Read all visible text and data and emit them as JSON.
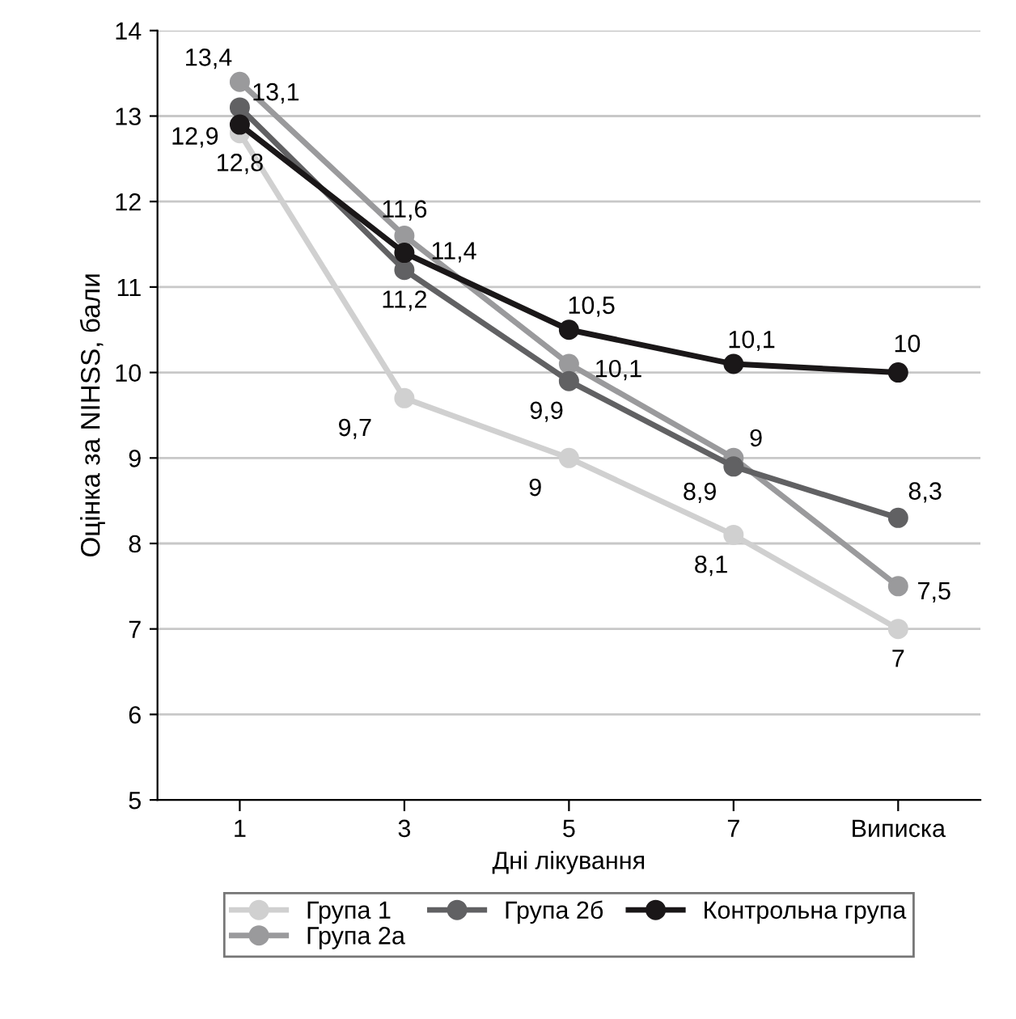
{
  "chart_data": {
    "type": "line",
    "ylabel": "Оцінка за NIHSS, бали",
    "xlabel": "Дні лікування",
    "categories": [
      "1",
      "3",
      "5",
      "7",
      "Виписка"
    ],
    "series": [
      {
        "name": "Група 1",
        "color": "#d0d0d0",
        "values": [
          12.8,
          9.7,
          9,
          8.1,
          7
        ],
        "value_labels": [
          "12,8",
          "9,7",
          "9",
          "8,1",
          "7"
        ]
      },
      {
        "name": "Група 2а",
        "color": "#9a9a9c",
        "values": [
          13.4,
          11.6,
          10.1,
          9,
          7.5
        ],
        "value_labels": [
          "13,4",
          "11,6",
          "10,1",
          "9",
          "7,5"
        ]
      },
      {
        "name": "Група 2б",
        "color": "#616163",
        "values": [
          13.1,
          11.2,
          9.9,
          8.9,
          8.3
        ],
        "value_labels": [
          "13,1",
          "11,2",
          "9,9",
          "8,9",
          "8,3"
        ]
      },
      {
        "name": "Контрольна група",
        "color": "#1a1718",
        "values": [
          12.9,
          11.4,
          10.5,
          10.1,
          10
        ],
        "value_labels": [
          "12,9",
          "11,4",
          "10,5",
          "10,1",
          "10"
        ]
      }
    ],
    "ylim": [
      5,
      14
    ],
    "yticks": [
      5,
      6,
      7,
      8,
      9,
      10,
      11,
      12,
      13,
      14
    ],
    "grid": "y",
    "legend": "bottom",
    "marker": "circle",
    "line_style": "solid"
  }
}
